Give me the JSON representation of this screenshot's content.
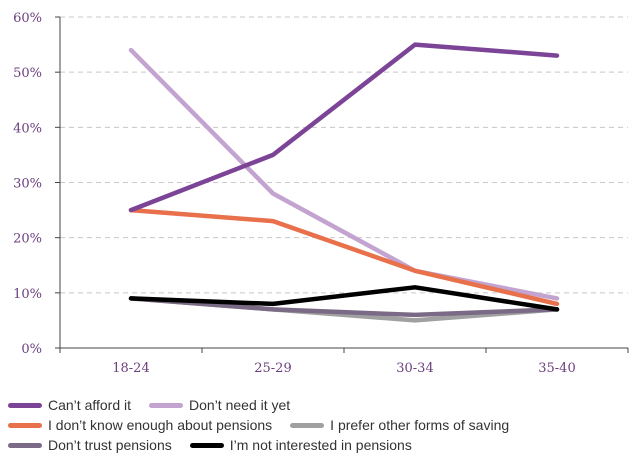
{
  "chart_data": {
    "type": "line",
    "title": "",
    "xlabel": "",
    "ylabel": "",
    "categories": [
      "18-24",
      "25-29",
      "30-34",
      "35-40"
    ],
    "ylim": [
      0,
      60
    ],
    "yticks": [
      "0%",
      "10%",
      "20%",
      "30%",
      "40%",
      "50%",
      "60%"
    ],
    "grid": true,
    "legend_position": "bottom",
    "series": [
      {
        "name": "Can’t afford it",
        "color": "#7b4496",
        "values": [
          25,
          35,
          55,
          53
        ]
      },
      {
        "name": "Don’t need it yet",
        "color": "#c3a3d0",
        "values": [
          54,
          28,
          14,
          9
        ]
      },
      {
        "name": "I don’t know enough about pensions",
        "color": "#e8704a",
        "values": [
          25,
          23,
          14,
          8
        ]
      },
      {
        "name": "I prefer other forms of saving",
        "color": "#a0a0a0",
        "values": [
          9,
          7,
          5,
          7
        ]
      },
      {
        "name": "Don’t trust pensions",
        "color": "#7a6a85",
        "values": [
          9,
          7,
          6,
          7
        ]
      },
      {
        "name": "I’m not interested in pensions",
        "color": "#000000",
        "values": [
          9,
          8,
          11,
          7
        ]
      }
    ],
    "draw_order": [
      3,
      4,
      5,
      1,
      2,
      0
    ]
  }
}
